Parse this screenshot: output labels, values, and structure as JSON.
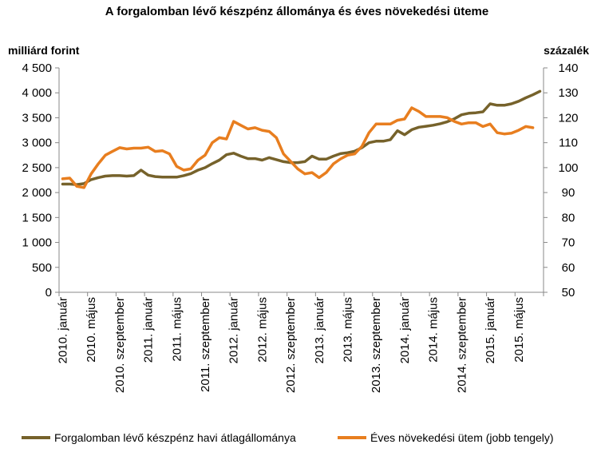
{
  "chart_data": {
    "type": "line",
    "title": "A forgalomban lévő készpénz állománya és éves növekedési üteme",
    "ylabel": "milliárd forint",
    "y2label": "százalék",
    "ylim": [
      0,
      4500
    ],
    "y2lim": [
      50,
      140
    ],
    "yticks": [
      "0",
      "500",
      "1 000",
      "1 500",
      "2 000",
      "2 500",
      "3 000",
      "3 500",
      "4 000",
      "4 500"
    ],
    "y2ticks": [
      "50",
      "60",
      "70",
      "80",
      "90",
      "100",
      "110",
      "120",
      "130",
      "140"
    ],
    "grid": false,
    "legend_position": "bottom",
    "xtick_labels": [
      {
        "index": 0,
        "label": "2010. január"
      },
      {
        "index": 4,
        "label": "2010. május"
      },
      {
        "index": 8,
        "label": "2010. szeptember"
      },
      {
        "index": 12,
        "label": "2011. január"
      },
      {
        "index": 16,
        "label": "2011. május"
      },
      {
        "index": 20,
        "label": "2011. szeptember"
      },
      {
        "index": 24,
        "label": "2012. január"
      },
      {
        "index": 28,
        "label": "2012. május"
      },
      {
        "index": 32,
        "label": "2012. szeptember"
      },
      {
        "index": 36,
        "label": "2013. január"
      },
      {
        "index": 40,
        "label": "2013. május"
      },
      {
        "index": 44,
        "label": "2013. szeptember"
      },
      {
        "index": 48,
        "label": "2014. január"
      },
      {
        "index": 52,
        "label": "2014. május"
      },
      {
        "index": 56,
        "label": "2014. szeptember"
      },
      {
        "index": 60,
        "label": "2015. január"
      },
      {
        "index": 64,
        "label": "2015. május"
      }
    ],
    "series": [
      {
        "name": "Forgalomban lévő készpénz havi átlagállománya",
        "axis": "left",
        "color": "#76622b",
        "values": [
          2170,
          2170,
          2160,
          2180,
          2260,
          2300,
          2330,
          2340,
          2340,
          2330,
          2340,
          2450,
          2350,
          2320,
          2310,
          2310,
          2310,
          2340,
          2380,
          2450,
          2500,
          2580,
          2650,
          2760,
          2790,
          2730,
          2680,
          2680,
          2650,
          2700,
          2660,
          2620,
          2600,
          2600,
          2620,
          2730,
          2670,
          2670,
          2730,
          2780,
          2800,
          2830,
          2900,
          3000,
          3030,
          3030,
          3060,
          3240,
          3160,
          3260,
          3310,
          3330,
          3350,
          3380,
          3420,
          3480,
          3560,
          3590,
          3600,
          3620,
          3780,
          3750,
          3750,
          3780,
          3830,
          3900,
          3960,
          4030
        ]
      },
      {
        "name": "Éves növekedési ütem (jobb tengely)",
        "axis": "right",
        "color": "#e87e1f",
        "values": [
          95.5,
          95.8,
          92.5,
          92.0,
          97.5,
          101.5,
          105.0,
          106.5,
          108.0,
          107.5,
          107.8,
          107.8,
          108.2,
          106.5,
          106.8,
          105.5,
          100.5,
          99.0,
          99.5,
          103.0,
          105.0,
          110.0,
          112.0,
          111.5,
          118.5,
          117.0,
          115.5,
          116.0,
          115.0,
          114.5,
          112.0,
          105.5,
          102.5,
          99.5,
          97.5,
          98.0,
          96.0,
          98.0,
          101.5,
          103.5,
          105.0,
          105.5,
          108.5,
          114.0,
          117.5,
          117.5,
          117.5,
          119.0,
          119.5,
          124.0,
          122.5,
          120.5,
          120.5,
          120.5,
          120.0,
          118.5,
          117.5,
          118.0,
          118.0,
          116.5,
          117.5,
          114.0,
          113.5,
          113.8,
          115.0,
          116.5,
          116.0
        ]
      }
    ]
  }
}
